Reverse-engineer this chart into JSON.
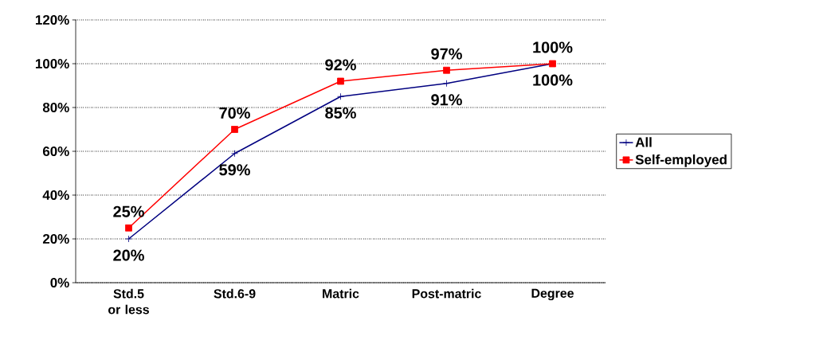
{
  "chart_data": {
    "type": "line",
    "categories": [
      "Std.5 or less",
      "Std.6-9",
      "Matric",
      "Post-matric",
      "Degree"
    ],
    "series": [
      {
        "name": "All",
        "color": "#000080",
        "marker": "cross",
        "values": [
          20,
          59,
          85,
          91,
          100
        ],
        "value_labels": [
          "20%",
          "59%",
          "85%",
          "91%",
          "100%"
        ]
      },
      {
        "name": "Self-employed",
        "color": "#ff0000",
        "marker": "square",
        "values": [
          25,
          70,
          92,
          97,
          100
        ],
        "value_labels": [
          "25%",
          "70%",
          "92%",
          "97%",
          "100%"
        ]
      }
    ],
    "ylim": [
      0,
      120
    ],
    "yticks": [
      {
        "value": 0,
        "label": "0%"
      },
      {
        "value": 20,
        "label": "20%"
      },
      {
        "value": 40,
        "label": "40%"
      },
      {
        "value": 60,
        "label": "60%"
      },
      {
        "value": 80,
        "label": "80%"
      },
      {
        "value": 100,
        "label": "100%"
      },
      {
        "value": 120,
        "label": "120%"
      }
    ],
    "grid": "y",
    "legend": "right"
  }
}
